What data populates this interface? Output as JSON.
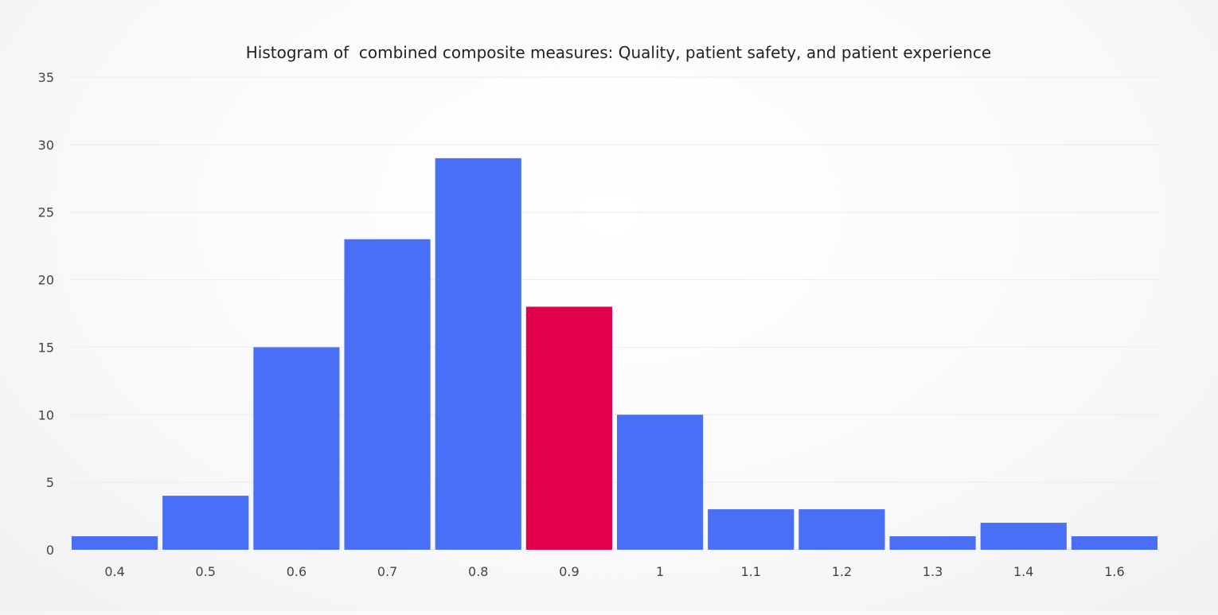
{
  "chart_data": {
    "type": "bar",
    "title": "Histogram of  combined composite measures: Quality, patient safety, and patient experience",
    "xlabel": "",
    "ylabel": "",
    "categories": [
      "0.4",
      "0.5",
      "0.6",
      "0.7",
      "0.8",
      "0.9",
      "1",
      "1.1",
      "1.2",
      "1.3",
      "1.4",
      "1.6"
    ],
    "values": [
      1,
      4,
      15,
      23,
      29,
      18,
      10,
      3,
      3,
      1,
      2,
      1
    ],
    "highlight_category": "0.9",
    "ylim": [
      0,
      35
    ],
    "yticks": [
      0,
      5,
      10,
      15,
      20,
      25,
      30,
      35
    ],
    "grid": true,
    "legend": "none",
    "colors": {
      "bar": "#4a6ff7",
      "highlight": "#e3004a"
    }
  }
}
